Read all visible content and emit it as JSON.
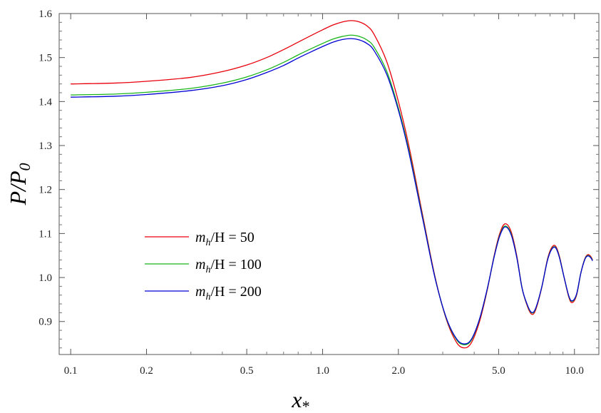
{
  "chart_data": {
    "type": "line",
    "title": "",
    "xlabel": "x",
    "xlabel_sub": "*",
    "ylabel": "P/P",
    "ylabel_sub": "0",
    "xscale": "log",
    "xlim": [
      0.09,
      12.5
    ],
    "ylim": [
      0.825,
      1.6
    ],
    "xticks": [
      {
        "v": 0.1,
        "label": "0.1"
      },
      {
        "v": 0.2,
        "label": "0.2"
      },
      {
        "v": 0.5,
        "label": "0.5"
      },
      {
        "v": 1.0,
        "label": "1.0"
      },
      {
        "v": 2.0,
        "label": "2.0"
      },
      {
        "v": 5.0,
        "label": "5.0"
      },
      {
        "v": 10.0,
        "label": "10.0"
      }
    ],
    "yticks": [
      {
        "v": 0.9,
        "label": "0.9"
      },
      {
        "v": 1.0,
        "label": "1.0"
      },
      {
        "v": 1.1,
        "label": "1.1"
      },
      {
        "v": 1.2,
        "label": "1.2"
      },
      {
        "v": 1.3,
        "label": "1.3"
      },
      {
        "v": 1.4,
        "label": "1.4"
      },
      {
        "v": 1.5,
        "label": "1.5"
      },
      {
        "v": 1.6,
        "label": "1.6"
      }
    ],
    "grid": false,
    "legend_position": "center-left",
    "series": [
      {
        "name": "m_h/H = 50",
        "color": "#e8000b",
        "legend": {
          "pre": "m",
          "sub": "h",
          "post": "/H = 50"
        },
        "points": [
          [
            0.1,
            1.44
          ],
          [
            0.15,
            1.442
          ],
          [
            0.2,
            1.446
          ],
          [
            0.3,
            1.455
          ],
          [
            0.4,
            1.468
          ],
          [
            0.5,
            1.483
          ],
          [
            0.6,
            1.5
          ],
          [
            0.7,
            1.518
          ],
          [
            0.8,
            1.535
          ],
          [
            0.9,
            1.55
          ],
          [
            1.0,
            1.563
          ],
          [
            1.1,
            1.574
          ],
          [
            1.2,
            1.581
          ],
          [
            1.3,
            1.584
          ],
          [
            1.4,
            1.581
          ],
          [
            1.5,
            1.572
          ],
          [
            1.6,
            1.553
          ],
          [
            1.8,
            1.49
          ],
          [
            2.0,
            1.4
          ],
          [
            2.2,
            1.3
          ],
          [
            2.5,
            1.14
          ],
          [
            2.8,
            1.0
          ],
          [
            3.1,
            0.905
          ],
          [
            3.4,
            0.853
          ],
          [
            3.65,
            0.84
          ],
          [
            3.9,
            0.852
          ],
          [
            4.2,
            0.9
          ],
          [
            4.5,
            0.97
          ],
          [
            4.8,
            1.05
          ],
          [
            5.05,
            1.1
          ],
          [
            5.3,
            1.122
          ],
          [
            5.6,
            1.105
          ],
          [
            5.9,
            1.05
          ],
          [
            6.2,
            0.975
          ],
          [
            6.5,
            0.935
          ],
          [
            6.75,
            0.917
          ],
          [
            7.0,
            0.925
          ],
          [
            7.4,
            0.975
          ],
          [
            7.8,
            1.04
          ],
          [
            8.1,
            1.067
          ],
          [
            8.4,
            1.072
          ],
          [
            8.7,
            1.05
          ],
          [
            9.1,
            1.0
          ],
          [
            9.5,
            0.955
          ],
          [
            9.8,
            0.943
          ],
          [
            10.2,
            0.96
          ],
          [
            10.6,
            1.01
          ],
          [
            11.0,
            1.043
          ],
          [
            11.3,
            1.052
          ],
          [
            11.6,
            1.048
          ],
          [
            11.8,
            1.04
          ]
        ]
      },
      {
        "name": "m_h/H = 100",
        "color": "#1ab51a",
        "legend": {
          "pre": "m",
          "sub": "h",
          "post": "/H = 100"
        },
        "points": [
          [
            0.1,
            1.415
          ],
          [
            0.15,
            1.417
          ],
          [
            0.2,
            1.421
          ],
          [
            0.3,
            1.43
          ],
          [
            0.4,
            1.442
          ],
          [
            0.5,
            1.456
          ],
          [
            0.6,
            1.472
          ],
          [
            0.7,
            1.489
          ],
          [
            0.8,
            1.506
          ],
          [
            0.9,
            1.52
          ],
          [
            1.0,
            1.532
          ],
          [
            1.1,
            1.542
          ],
          [
            1.2,
            1.548
          ],
          [
            1.3,
            1.551
          ],
          [
            1.4,
            1.548
          ],
          [
            1.5,
            1.54
          ],
          [
            1.6,
            1.524
          ],
          [
            1.8,
            1.468
          ],
          [
            2.0,
            1.385
          ],
          [
            2.2,
            1.29
          ],
          [
            2.5,
            1.135
          ],
          [
            2.8,
            0.998
          ],
          [
            3.1,
            0.907
          ],
          [
            3.4,
            0.859
          ],
          [
            3.65,
            0.847
          ],
          [
            3.9,
            0.858
          ],
          [
            4.2,
            0.905
          ],
          [
            4.5,
            0.972
          ],
          [
            4.8,
            1.048
          ],
          [
            5.05,
            1.096
          ],
          [
            5.3,
            1.117
          ],
          [
            5.6,
            1.1
          ],
          [
            5.9,
            1.047
          ],
          [
            6.2,
            0.975
          ],
          [
            6.5,
            0.937
          ],
          [
            6.75,
            0.92
          ],
          [
            7.0,
            0.928
          ],
          [
            7.4,
            0.976
          ],
          [
            7.8,
            1.038
          ],
          [
            8.1,
            1.064
          ],
          [
            8.4,
            1.069
          ],
          [
            8.7,
            1.048
          ],
          [
            9.1,
            1.0
          ],
          [
            9.5,
            0.957
          ],
          [
            9.8,
            0.946
          ],
          [
            10.2,
            0.962
          ],
          [
            10.6,
            1.01
          ],
          [
            11.0,
            1.042
          ],
          [
            11.3,
            1.05
          ],
          [
            11.6,
            1.046
          ],
          [
            11.8,
            1.039
          ]
        ]
      },
      {
        "name": "m_h/H = 200",
        "color": "#0000d4",
        "legend": {
          "pre": "m",
          "sub": "h",
          "post": "/H = 200"
        },
        "points": [
          [
            0.1,
            1.41
          ],
          [
            0.15,
            1.412
          ],
          [
            0.2,
            1.416
          ],
          [
            0.3,
            1.425
          ],
          [
            0.4,
            1.436
          ],
          [
            0.5,
            1.45
          ],
          [
            0.6,
            1.466
          ],
          [
            0.7,
            1.482
          ],
          [
            0.8,
            1.499
          ],
          [
            0.9,
            1.513
          ],
          [
            1.0,
            1.525
          ],
          [
            1.1,
            1.535
          ],
          [
            1.2,
            1.541
          ],
          [
            1.3,
            1.543
          ],
          [
            1.4,
            1.54
          ],
          [
            1.5,
            1.532
          ],
          [
            1.6,
            1.516
          ],
          [
            1.8,
            1.461
          ],
          [
            2.0,
            1.38
          ],
          [
            2.2,
            1.285
          ],
          [
            2.5,
            1.132
          ],
          [
            2.8,
            0.997
          ],
          [
            3.1,
            0.908
          ],
          [
            3.4,
            0.861
          ],
          [
            3.65,
            0.849
          ],
          [
            3.9,
            0.86
          ],
          [
            4.2,
            0.906
          ],
          [
            4.5,
            0.973
          ],
          [
            4.8,
            1.047
          ],
          [
            5.05,
            1.094
          ],
          [
            5.3,
            1.115
          ],
          [
            5.6,
            1.098
          ],
          [
            5.9,
            1.046
          ],
          [
            6.2,
            0.975
          ],
          [
            6.5,
            0.938
          ],
          [
            6.75,
            0.921
          ],
          [
            7.0,
            0.929
          ],
          [
            7.4,
            0.976
          ],
          [
            7.8,
            1.037
          ],
          [
            8.1,
            1.063
          ],
          [
            8.4,
            1.068
          ],
          [
            8.7,
            1.047
          ],
          [
            9.1,
            1.0
          ],
          [
            9.5,
            0.958
          ],
          [
            9.8,
            0.947
          ],
          [
            10.2,
            0.963
          ],
          [
            10.6,
            1.01
          ],
          [
            11.0,
            1.041
          ],
          [
            11.3,
            1.049
          ],
          [
            11.6,
            1.045
          ],
          [
            11.8,
            1.038
          ]
        ]
      }
    ]
  }
}
